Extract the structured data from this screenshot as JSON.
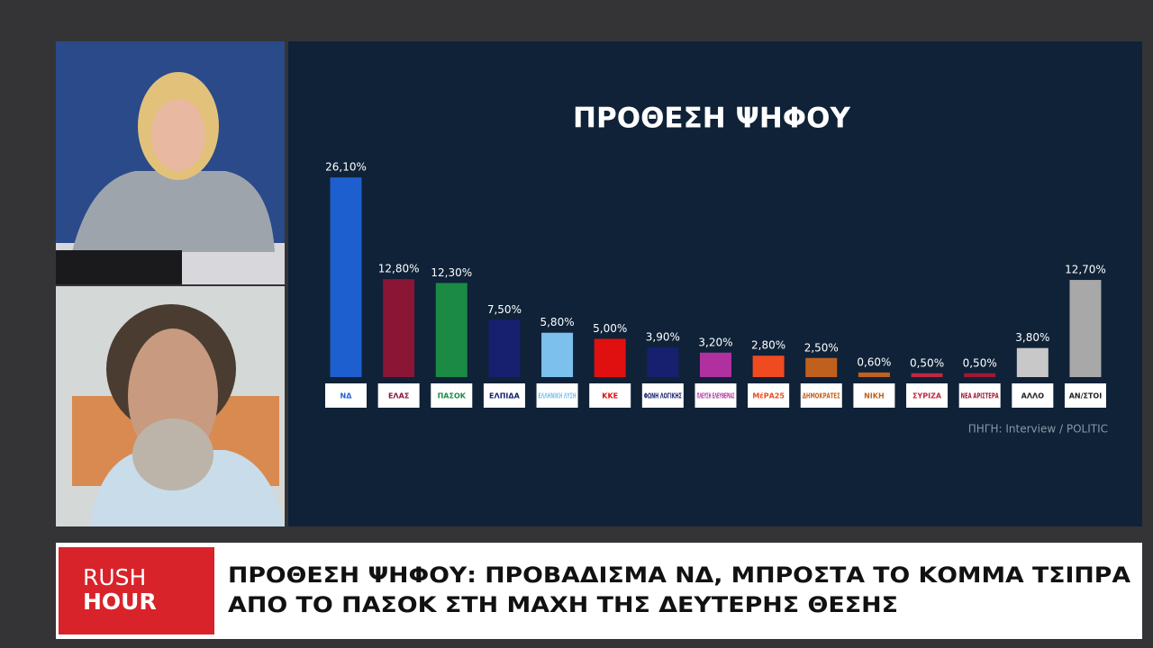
{
  "chart_data": {
    "type": "bar",
    "title": "ΠΡΟΘΕΣΗ ΨΗΦΟΥ",
    "categories": [
      "ΝΔ",
      "ΕΛΑΣ",
      "ΠΑΣΟΚ",
      "ΕΛΠΙΔΑ",
      "ΕΛΛΗΝΙΚΗ ΛΥΣΗ",
      "ΚΚΕ",
      "ΦΩΝΗ ΛΟΓΙΚΗΣ",
      "ΠΛΕΥΣΗ ΕΛΕΥΘΕΡΙΑΣ",
      "ΜέΡΑ25",
      "ΔΗΜΟΚΡΑΤΕΣ",
      "ΝΙΚΗ",
      "ΣΥΡΙΖΑ",
      "ΝΕΑ ΑΡΙΣΤΕΡΑ",
      "ΑΛΛΟ",
      "ΑΝ/ΣΤΟΙ"
    ],
    "values": [
      26.1,
      12.8,
      12.3,
      7.5,
      5.8,
      5.0,
      3.9,
      3.2,
      2.8,
      2.5,
      0.6,
      0.5,
      0.5,
      3.8,
      12.7
    ],
    "value_labels": [
      "26,10%",
      "12,80%",
      "12,30%",
      "7,50%",
      "5,80%",
      "5,00%",
      "3,90%",
      "3,20%",
      "2,80%",
      "2,50%",
      "0,60%",
      "0,50%",
      "0,50%",
      "3,80%",
      "12,70%"
    ],
    "colors": [
      "#1e5fd0",
      "#8b1535",
      "#1a8a45",
      "#16206e",
      "#7cc0ee",
      "#e01010",
      "#16206e",
      "#b030a0",
      "#f04a20",
      "#c0601e",
      "#c0601e",
      "#c02840",
      "#a01835",
      "#c8c8c8",
      "#a8a8a8"
    ],
    "source": "ΠΗΓΗ: Interview / POLITIC"
  },
  "ticker": {
    "brand": [
      "RUSH",
      "HOUR"
    ],
    "headline": [
      "ΠΡΟΘΕΣΗ ΨΗΦΟΥ: ΠΡΟΒΑΔΙΣΜΑ ΝΔ, ΜΠΡΟΣΤΑ ΤΟ ΚΟΜΜΑ ΤΣΙΠΡΑ",
      "ΑΠΟ ΤΟ ΠΑΣΟΚ ΣΤΗ ΜΑΧΗ ΤΗΣ ΔΕΥΤΕΡΗΣ ΘΕΣΗΣ"
    ]
  }
}
